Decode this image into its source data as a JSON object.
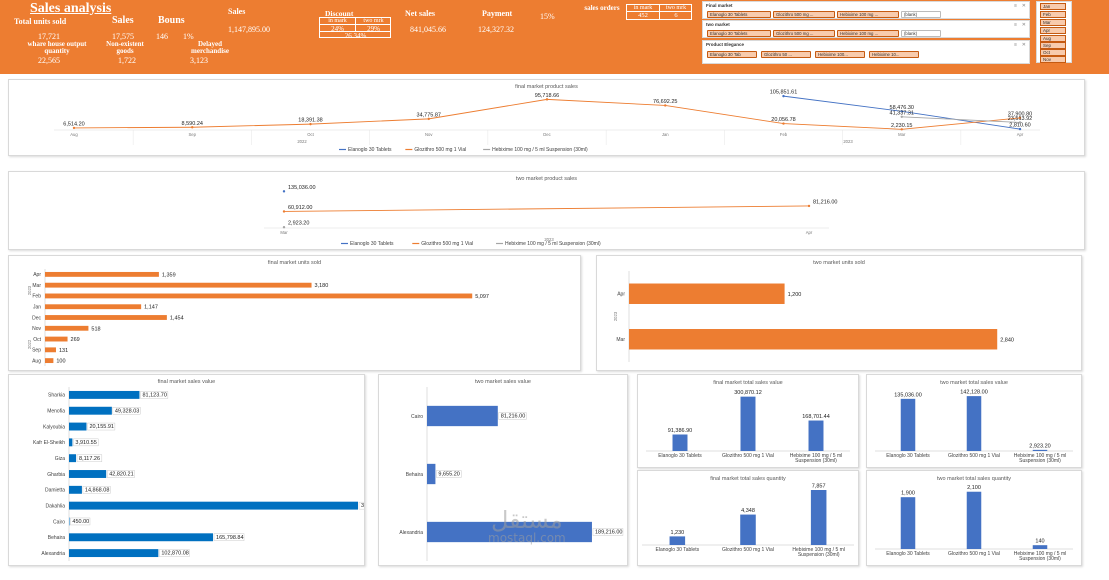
{
  "header": {
    "title": "Sales analysis",
    "total_units_label": "Total units sold",
    "total_units_value": "17,721",
    "sales_label": "Sales",
    "sales_value": "17,575",
    "bonus_label": "Bouns",
    "bonus_value": "146",
    "bonus_pct": "1%",
    "wh_label": "whare house output quantity",
    "wh_value": "22,565",
    "nonexist_label": "Non-existent goods",
    "nonexist_value": "1,722",
    "delayed_label": "Delayed merchandise",
    "delayed_value": "3,123",
    "sales_amount_label": "Sales",
    "sales_amount_value": "1,147,895.00",
    "discount_label": "Discount",
    "disc_in_market": "in mark",
    "disc_two_market": "two mrk",
    "disc_in_value": "24%",
    "disc_two_value": "29%",
    "disc_total": "26.34%",
    "net_sales_label": "Net sales",
    "net_sales_value": "841,045.66",
    "payment_label": "Payment",
    "payment_value": "124,327.32",
    "payment_pct": "15%",
    "orders_label": "sales orders",
    "orders_in_label": "in mark",
    "orders_two_label": "two mrk",
    "orders_in_value": "452",
    "orders_two_value": "6"
  },
  "slicers": {
    "final_market": {
      "title": "Final market",
      "items": [
        "Elanoglo 30 Tablets",
        "Glozithro 500 mg ...",
        "Hebixime 100 mg ...",
        "(blank)"
      ]
    },
    "two_market": {
      "title": "two market",
      "items": [
        "Elanoglo 30 Tablets",
        "Glozithro 500 mg ...",
        "Hebixime 100 mg ...",
        "(blank)"
      ]
    },
    "product_filter": {
      "title": "Product Elegance",
      "items": [
        "Elanoglo 30 Tab",
        "Glozithro 50 ...",
        "Hebixime 100...",
        "Hebixime 10..."
      ]
    },
    "months": {
      "items": [
        "Jan",
        "Feb",
        "Mar",
        "Apr",
        "Aug",
        "Sep",
        "Oct",
        "Nov"
      ]
    }
  },
  "watermark": {
    "arabic": "مستقل",
    "latin": "mostaql.com"
  },
  "chart_data": [
    {
      "id": "final_market_product_sales",
      "type": "line",
      "title": "final market product sales",
      "categories": [
        "Aug",
        "Sep",
        "Oct",
        "Nov",
        "Dec",
        "Jan",
        "Feb",
        "Mar",
        "Apr"
      ],
      "year_labels": [
        "2022",
        "2023"
      ],
      "series": [
        {
          "name": "Elanoglo 30 Tablets",
          "color": "#4472c4",
          "values": [
            null,
            null,
            null,
            null,
            null,
            null,
            105851.61,
            58476.3,
            2810.6
          ]
        },
        {
          "name": "Glozithro 500 mg 1 Vial",
          "color": "#ed7d31",
          "values": [
            6514.2,
            8590.24,
            18391.38,
            34775.87,
            95718.66,
            76692.25,
            20056.78,
            2230.15,
            37900.8
          ]
        },
        {
          "name": "Hebixime 100 mg / 5 ml Suspension (30ml)",
          "color": "#a5a5a5",
          "values": [
            null,
            null,
            null,
            null,
            null,
            null,
            null,
            41337.31,
            23513.92
          ]
        }
      ],
      "ylim": [
        0,
        100000
      ]
    },
    {
      "id": "two_market_product_sales",
      "type": "line",
      "title": "two market product sales",
      "categories": [
        "Mar",
        "Apr"
      ],
      "year_labels": [
        "2023"
      ],
      "series": [
        {
          "name": "Elanoglo 30 Tablets",
          "color": "#4472c4",
          "values": [
            135036.0,
            null
          ]
        },
        {
          "name": "Glozithro 500 mg 1 Vial",
          "color": "#ed7d31",
          "values": [
            60912.0,
            81216.0
          ]
        },
        {
          "name": "Hebixime 100 mg / 5 ml Suspension (30ml)",
          "color": "#a5a5a5",
          "values": [
            2923.2,
            null
          ]
        }
      ],
      "ylim": [
        0,
        140000
      ]
    },
    {
      "id": "final_market_units_sold",
      "type": "bar",
      "title": "final market units sold",
      "categories": [
        "Apr",
        "Mar",
        "Feb",
        "Jan",
        "Dec",
        "Nov",
        "Oct",
        "Sep",
        "Aug"
      ],
      "year_labels": [
        "2023",
        "2022"
      ],
      "values": [
        1359,
        3180,
        5097,
        1147,
        1454,
        518,
        269,
        131,
        100
      ],
      "xlim": [
        0,
        5500
      ],
      "color": "#ed7d31"
    },
    {
      "id": "two_market_units_sold",
      "type": "bar",
      "title": "two market units sold",
      "categories": [
        "Apr",
        "Mar"
      ],
      "year_labels": [
        "2023"
      ],
      "values": [
        1200,
        2840
      ],
      "xlim": [
        0,
        2900
      ],
      "color": "#ed7d31"
    },
    {
      "id": "final_market_sales_value",
      "type": "bar",
      "title": "final market sales value",
      "categories": [
        "Sharkia",
        "Menofia",
        "Kalyoubia",
        "Kafr El-Sheikh",
        "Giza",
        "Gharbia",
        "Damietta",
        "Dakahlia",
        "Cairo",
        "Behaira",
        "Alexandria"
      ],
      "values": [
        81123.7,
        49328.03,
        20155.91,
        3910.55,
        8117.26,
        42820.21,
        14868.08,
        332703.79,
        450.0,
        165798.84,
        102870.08
      ],
      "xlim": [
        0,
        335000
      ],
      "color": "#0070c0"
    },
    {
      "id": "two_market_sales_value",
      "type": "bar",
      "title": "two market sales value",
      "categories": [
        "Cairo",
        "Behaira",
        "Alexandria"
      ],
      "values": [
        81216.0,
        9655.2,
        189216.0
      ],
      "xlim": [
        0,
        195000
      ],
      "color": "#4472c4"
    },
    {
      "id": "final_market_total_sales_value",
      "type": "bar",
      "title": "final market total sales value",
      "categories": [
        "Elanoglo 30 Tablets",
        "Glozithro 500 mg 1 Vial",
        "Hebixime 100 mg / 5 ml Suspension (30ml)"
      ],
      "values": [
        91386.9,
        300870.12,
        168701.44
      ],
      "ylim": [
        0,
        310000
      ],
      "color": "#4472c4"
    },
    {
      "id": "two_market_total_sales_value",
      "type": "bar",
      "title": "two market total sales value",
      "categories": [
        "Elanoglo 30 Tablets",
        "Glozithro 500 mg 1 Vial",
        "Hebixime 100 mg / 5 ml Suspension (30ml)"
      ],
      "values": [
        135036.0,
        142128.0,
        2923.2
      ],
      "ylim": [
        0,
        145000
      ],
      "color": "#4472c4"
    },
    {
      "id": "final_market_total_sales_quantity",
      "type": "bar",
      "title": "final market total sales quantity",
      "categories": [
        "Elanoglo 30 Tablets",
        "Glozithro 500 mg 1 Vial",
        "Hebixime 100 mg / 5 ml Suspension (30ml)"
      ],
      "values": [
        1230,
        4348,
        7857
      ],
      "ylim": [
        0,
        8000
      ],
      "color": "#4472c4"
    },
    {
      "id": "two_market_total_sales_quantity",
      "type": "bar",
      "title": "two market total sales quantity",
      "categories": [
        "Elanoglo 30 Tablets",
        "Glozithro 500 mg 1 Vial",
        "Hebixime 100 mg / 5 ml Suspension (30ml)"
      ],
      "values": [
        1900,
        2100,
        140
      ],
      "ylim": [
        0,
        2200
      ],
      "color": "#4472c4"
    }
  ]
}
